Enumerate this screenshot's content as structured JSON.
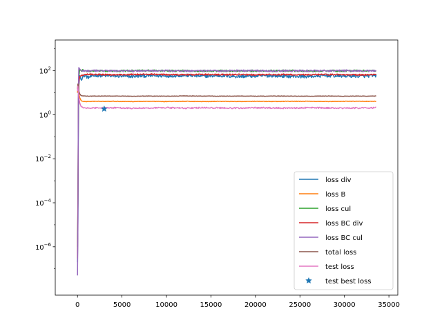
{
  "chart_data": {
    "type": "line",
    "title": "",
    "xlabel": "",
    "ylabel": "",
    "xlim": [
      -2500,
      36000
    ],
    "ylim_log10": [
      -8.2,
      3.4
    ],
    "yscale": "log",
    "grid": false,
    "legend_position": "lower-right",
    "x_ticks": [
      {
        "value": 0,
        "label": "0"
      },
      {
        "value": 5000,
        "label": "5000"
      },
      {
        "value": 10000,
        "label": "10000"
      },
      {
        "value": 15000,
        "label": "15000"
      },
      {
        "value": 20000,
        "label": "20000"
      },
      {
        "value": 25000,
        "label": "25000"
      },
      {
        "value": 30000,
        "label": "30000"
      },
      {
        "value": 35000,
        "label": "35000"
      }
    ],
    "y_ticks": [
      {
        "exp": 2,
        "base": "10",
        "power": "2"
      },
      {
        "exp": 0,
        "base": "10",
        "power": "0"
      },
      {
        "exp": -2,
        "base": "10",
        "power": "−2"
      },
      {
        "exp": -4,
        "base": "10",
        "power": "−4"
      },
      {
        "exp": -6,
        "base": "10",
        "power": "−6"
      }
    ],
    "series": [
      {
        "name": "loss div",
        "color": "#1f77b4",
        "x": [
          0,
          50,
          100,
          150,
          250,
          400,
          600,
          800,
          1200,
          2000,
          4000,
          6000,
          8000,
          10000,
          12000,
          14000,
          16000,
          18000,
          20000,
          22000,
          24000,
          26000,
          28000,
          30000,
          32000,
          33600
        ],
        "y": [
          2e-07,
          2e-05,
          0.3,
          20,
          60,
          40,
          55,
          60,
          50,
          62,
          58,
          55,
          60,
          58,
          62,
          57,
          60,
          55,
          58,
          60,
          56,
          55,
          60,
          58,
          57,
          60
        ],
        "noise": 0.07
      },
      {
        "name": "loss B",
        "color": "#ff7f0e",
        "x": [
          0,
          50,
          100,
          150,
          250,
          400,
          600,
          800,
          1200,
          2000,
          4000,
          6000,
          8000,
          10000,
          12000,
          14000,
          16000,
          18000,
          20000,
          22000,
          24000,
          26000,
          28000,
          30000,
          32000,
          33600
        ],
        "y": [
          10,
          20,
          15,
          10,
          6,
          4.5,
          4.0,
          4.0,
          4.0,
          4.1,
          4.1,
          4.0,
          4.1,
          4.0,
          4.1,
          4.0,
          4.1,
          4.0,
          4.1,
          4.0,
          4.1,
          4.1,
          4.0,
          4.1,
          4.1,
          4.1
        ],
        "noise": 0.012
      },
      {
        "name": "loss cul",
        "color": "#2ca02c",
        "x": [
          0,
          50,
          100,
          150,
          250,
          400,
          600,
          800,
          1200,
          2000,
          4000,
          6000,
          8000,
          10000,
          12000,
          14000,
          16000,
          18000,
          20000,
          22000,
          24000,
          26000,
          28000,
          30000,
          32000,
          33600
        ],
        "y": [
          1e-06,
          0.0001,
          2,
          50,
          120,
          100,
          105,
          100,
          95,
          100,
          98,
          100,
          102,
          98,
          100,
          97,
          100,
          98,
          100,
          99,
          100,
          98,
          100,
          99,
          100,
          100
        ],
        "noise": 0.04
      },
      {
        "name": "loss BC div",
        "color": "#d62728",
        "x": [
          0,
          50,
          100,
          150,
          250,
          400,
          600,
          800,
          1200,
          2000,
          4000,
          6000,
          8000,
          10000,
          12000,
          14000,
          16000,
          18000,
          20000,
          22000,
          24000,
          26000,
          28000,
          30000,
          32000,
          33600
        ],
        "y": [
          3e-07,
          0.0001,
          5,
          30,
          55,
          60,
          65,
          68,
          70,
          68,
          66,
          68,
          70,
          67,
          66,
          68,
          67,
          68,
          66,
          68,
          67,
          66,
          68,
          67,
          66,
          67
        ],
        "noise": 0.03
      },
      {
        "name": "loss BC cul",
        "color": "#9467bd",
        "x": [
          0,
          50,
          100,
          150,
          250,
          400,
          600,
          800,
          1200,
          2000,
          4000,
          6000,
          8000,
          10000,
          12000,
          14000,
          16000,
          18000,
          20000,
          22000,
          24000,
          26000,
          28000,
          30000,
          32000,
          33600
        ],
        "y": [
          5e-08,
          1e-05,
          20,
          140,
          120,
          105,
          100,
          102,
          98,
          100,
          99,
          98,
          100,
          101,
          98,
          100,
          99,
          102,
          100,
          98,
          100,
          99,
          100,
          101,
          99,
          100
        ],
        "noise": 0.04
      },
      {
        "name": "total loss",
        "color": "#8c564b",
        "x": [
          0,
          50,
          100,
          150,
          250,
          400,
          600,
          800,
          1200,
          2000,
          4000,
          6000,
          8000,
          10000,
          12000,
          14000,
          16000,
          18000,
          20000,
          22000,
          24000,
          26000,
          28000,
          30000,
          32000,
          33600
        ],
        "y": [
          15,
          25,
          18,
          12,
          9,
          7.5,
          7.2,
          7.2,
          7.0,
          7.1,
          7.1,
          7.0,
          7.1,
          7.0,
          7.2,
          7.1,
          7.0,
          7.1,
          7.0,
          7.1,
          7.1,
          7.0,
          7.1,
          7.0,
          7.1,
          7.1
        ],
        "noise": 0.01
      },
      {
        "name": "test loss",
        "color": "#e377c2",
        "x": [
          0,
          50,
          100,
          150,
          250,
          400,
          600,
          800,
          1200,
          2000,
          4000,
          6000,
          8000,
          10000,
          12000,
          14000,
          16000,
          18000,
          20000,
          22000,
          24000,
          26000,
          28000,
          30000,
          32000,
          33600
        ],
        "y": [
          12,
          20,
          12,
          7,
          3.5,
          2.4,
          2.1,
          2.0,
          2.0,
          2.05,
          2.1,
          2.0,
          2.05,
          2.1,
          2.0,
          2.1,
          2.05,
          2.0,
          2.1,
          2.05,
          2.0,
          2.1,
          2.05,
          2.0,
          2.05,
          2.1
        ],
        "noise": 0.03
      }
    ],
    "markers": [
      {
        "name": "test best loss",
        "color": "#1f77b4",
        "x": 3000,
        "y": 1.85,
        "symbol": "star"
      }
    ]
  }
}
